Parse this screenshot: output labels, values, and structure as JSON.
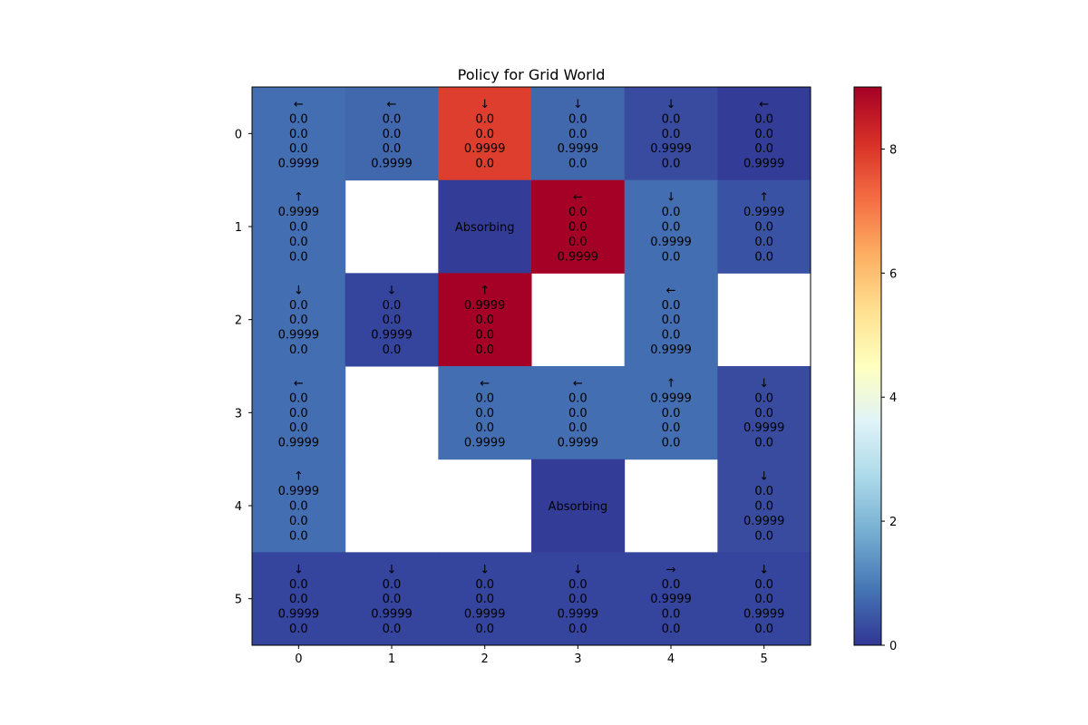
{
  "chart_data": {
    "type": "heatmap",
    "title": "Policy for Grid World",
    "xlabel": "",
    "ylabel": "",
    "x_ticks": [
      "0",
      "1",
      "2",
      "3",
      "4",
      "5"
    ],
    "y_ticks": [
      "0",
      "1",
      "2",
      "3",
      "4",
      "5"
    ],
    "colormap": "RdYlBu_r",
    "colorbar": {
      "min": 0,
      "max": 9,
      "ticks": [
        "0",
        "2",
        "4",
        "6",
        "8"
      ]
    },
    "cells": [
      [
        {
          "value": 0.8,
          "arrow": "←",
          "probs": [
            "0.0",
            "0.0",
            "0.0",
            "0.9999"
          ]
        },
        {
          "value": 0.7,
          "arrow": "←",
          "probs": [
            "0.0",
            "0.0",
            "0.0",
            "0.9999"
          ]
        },
        {
          "value": 7.9,
          "arrow": "↓",
          "probs": [
            "0.0",
            "0.0",
            "0.9999",
            "0.0"
          ]
        },
        {
          "value": 0.7,
          "arrow": "↓",
          "probs": [
            "0.0",
            "0.0",
            "0.9999",
            "0.0"
          ]
        },
        {
          "value": 0.3,
          "arrow": "↓",
          "probs": [
            "0.0",
            "0.0",
            "0.9999",
            "0.0"
          ]
        },
        {
          "value": 0.1,
          "arrow": "←",
          "probs": [
            "0.0",
            "0.0",
            "0.0",
            "0.9999"
          ]
        }
      ],
      [
        {
          "value": 0.8,
          "arrow": "↑",
          "probs": [
            "0.9999",
            "0.0",
            "0.0",
            "0.0"
          ]
        },
        null,
        {
          "value": 0.1,
          "label": "Absorbing"
        },
        {
          "value": 9.0,
          "arrow": "←",
          "probs": [
            "0.0",
            "0.0",
            "0.0",
            "0.9999"
          ]
        },
        {
          "value": 0.8,
          "arrow": "↓",
          "probs": [
            "0.0",
            "0.0",
            "0.9999",
            "0.0"
          ]
        },
        {
          "value": 0.4,
          "arrow": "↑",
          "probs": [
            "0.9999",
            "0.0",
            "0.0",
            "0.0"
          ]
        }
      ],
      [
        {
          "value": 0.8,
          "arrow": "↓",
          "probs": [
            "0.0",
            "0.0",
            "0.9999",
            "0.0"
          ]
        },
        {
          "value": 0.2,
          "arrow": "↓",
          "probs": [
            "0.0",
            "0.0",
            "0.9999",
            "0.0"
          ]
        },
        {
          "value": 9.0,
          "arrow": "↑",
          "probs": [
            "0.9999",
            "0.0",
            "0.0",
            "0.0"
          ]
        },
        null,
        {
          "value": 0.8,
          "arrow": "←",
          "probs": [
            "0.0",
            "0.0",
            "0.0",
            "0.9999"
          ]
        },
        null
      ],
      [
        {
          "value": 0.8,
          "arrow": "←",
          "probs": [
            "0.0",
            "0.0",
            "0.0",
            "0.9999"
          ]
        },
        null,
        {
          "value": 0.8,
          "arrow": "←",
          "probs": [
            "0.0",
            "0.0",
            "0.0",
            "0.9999"
          ]
        },
        {
          "value": 0.8,
          "arrow": "←",
          "probs": [
            "0.0",
            "0.0",
            "0.0",
            "0.9999"
          ]
        },
        {
          "value": 0.8,
          "arrow": "↑",
          "probs": [
            "0.9999",
            "0.0",
            "0.0",
            "0.0"
          ]
        },
        {
          "value": 0.3,
          "arrow": "↓",
          "probs": [
            "0.0",
            "0.0",
            "0.9999",
            "0.0"
          ]
        }
      ],
      [
        {
          "value": 0.8,
          "arrow": "↑",
          "probs": [
            "0.9999",
            "0.0",
            "0.0",
            "0.0"
          ]
        },
        null,
        null,
        {
          "value": 0.1,
          "label": "Absorbing"
        },
        null,
        {
          "value": 0.3,
          "arrow": "↓",
          "probs": [
            "0.0",
            "0.0",
            "0.9999",
            "0.0"
          ]
        }
      ],
      [
        {
          "value": 0.2,
          "arrow": "↓",
          "probs": [
            "0.0",
            "0.0",
            "0.9999",
            "0.0"
          ]
        },
        {
          "value": 0.2,
          "arrow": "↓",
          "probs": [
            "0.0",
            "0.0",
            "0.9999",
            "0.0"
          ]
        },
        {
          "value": 0.2,
          "arrow": "↓",
          "probs": [
            "0.0",
            "0.0",
            "0.9999",
            "0.0"
          ]
        },
        {
          "value": 0.2,
          "arrow": "↓",
          "probs": [
            "0.0",
            "0.0",
            "0.9999",
            "0.0"
          ]
        },
        {
          "value": 0.2,
          "arrow": "→",
          "probs": [
            "0.0",
            "0.9999",
            "0.0",
            "0.0"
          ]
        },
        {
          "value": 0.2,
          "arrow": "↓",
          "probs": [
            "0.0",
            "0.0",
            "0.9999",
            "0.0"
          ]
        }
      ]
    ]
  }
}
